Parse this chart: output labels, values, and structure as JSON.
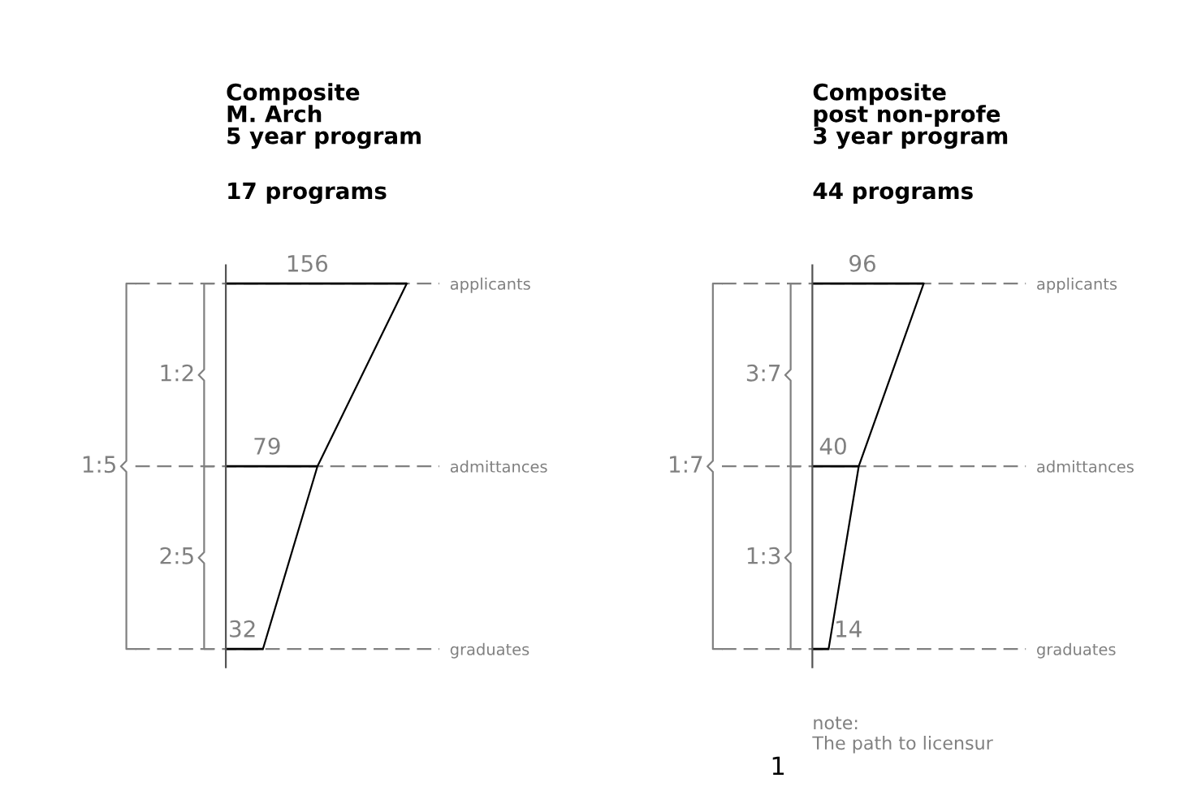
{
  "chart_data": [
    {
      "type": "bar",
      "orientation": "horizontal",
      "title": "Composite\nM. Arch\n5 year program",
      "subtitle": "17 programs",
      "categories": [
        "applicants",
        "admittances",
        "graduates"
      ],
      "values": [
        156,
        79,
        32
      ],
      "color": "#000000",
      "data_labels": true,
      "grid": "y",
      "annotations": [
        "1:2",
        "2:5",
        "1:5",
        "1"
      ]
    },
    {
      "type": "bar",
      "orientation": "horizontal",
      "title": "Composite\npost non-profe\n3 year program",
      "subtitle": "44 programs",
      "categories": [
        "applicants",
        "admittances",
        "graduates"
      ],
      "values": [
        96,
        40,
        14
      ],
      "color": "#000000",
      "data_labels": true,
      "grid": "y",
      "annotations": [
        "3:7",
        "1:3",
        "1:7",
        "note:\nThe path to licensur"
      ]
    }
  ]
}
